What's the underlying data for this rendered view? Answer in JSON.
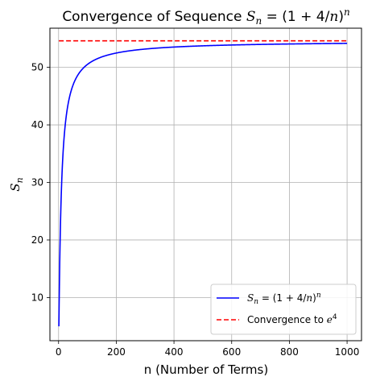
{
  "chart_data": {
    "type": "line",
    "title_prefix": "Convergence of Sequence ",
    "title_math": "S_n = (1 + 4/n)^n",
    "xlabel": "n (Number of Terms)",
    "ylabel": "S_n",
    "xlim": [
      -30,
      1050
    ],
    "ylim": [
      2.5,
      56.8
    ],
    "xticks": [
      0,
      200,
      400,
      600,
      800,
      1000
    ],
    "yticks": [
      10,
      20,
      30,
      40,
      50
    ],
    "grid": true,
    "legend_position": "lower-right",
    "series": [
      {
        "name": "S_n = (1 + 4/n)^n",
        "color": "#0000ff",
        "style": "solid",
        "formula": "(1+4/n)^n",
        "n_range": [
          1,
          1000
        ]
      },
      {
        "name": "Convergence to e^4",
        "color": "#ff0000",
        "style": "dashed",
        "value": 54.598,
        "n_range": [
          1,
          1000
        ]
      }
    ]
  }
}
